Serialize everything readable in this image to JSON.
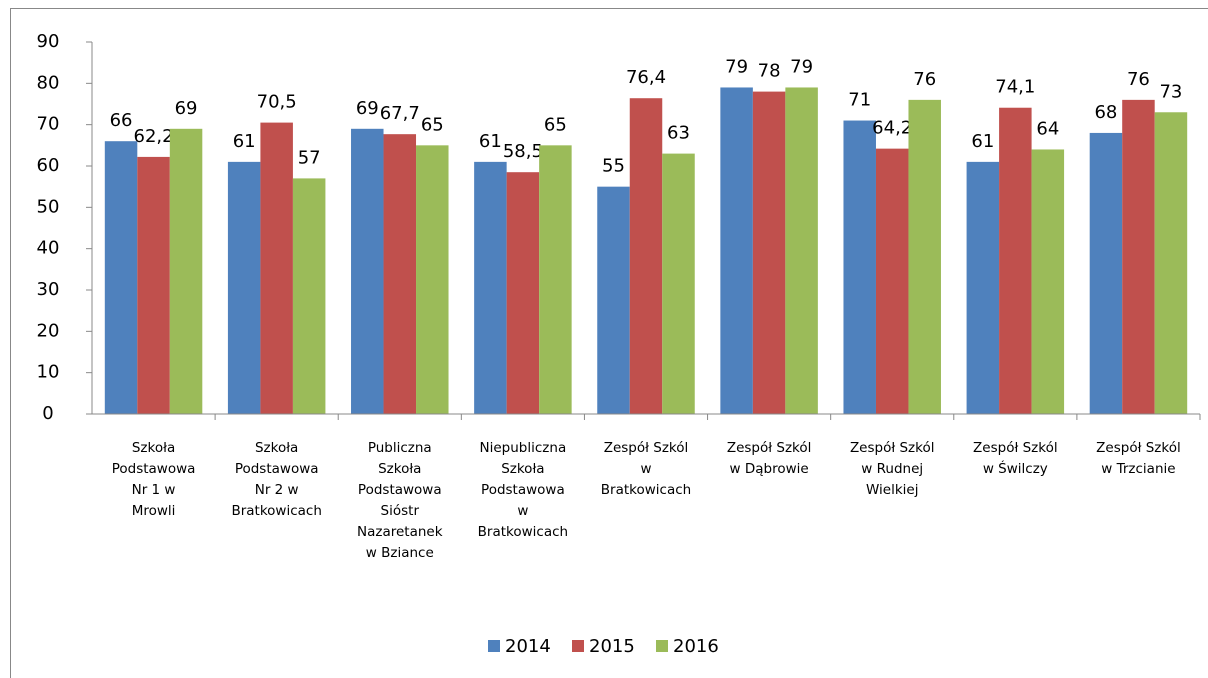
{
  "chart_data": {
    "type": "bar",
    "categories": [
      [
        "Szkoła",
        "Podstawowa",
        "Nr 1 w",
        "Mrowli"
      ],
      [
        "Szkoła",
        "Podstawowa",
        "Nr 2 w",
        "Bratkowicach"
      ],
      [
        "Publiczna",
        "Szkoła",
        "Podstawowa",
        "Sióstr",
        "Nazaretanek",
        "w Bziance"
      ],
      [
        "Niepubliczna",
        "Szkoła",
        "Podstawowa",
        "w",
        "Bratkowicach"
      ],
      [
        "Zespół Szkól",
        "w",
        "Bratkowicach"
      ],
      [
        "Zespół Szkól",
        "w Dąbrowie"
      ],
      [
        "Zespół Szkól",
        "w Rudnej",
        "Wielkiej"
      ],
      [
        "Zespół Szkól",
        "w Świlczy"
      ],
      [
        "Zespół Szkól",
        "w Trzcianie"
      ]
    ],
    "series": [
      {
        "name": "2014",
        "color": "#4f81bd",
        "values": [
          66,
          61,
          69,
          61,
          55,
          79,
          71,
          61,
          68
        ],
        "value_labels": [
          "66",
          "61",
          "69",
          "61",
          "55",
          "79",
          "71",
          "61",
          "68"
        ]
      },
      {
        "name": "2015",
        "color": "#c0504d",
        "values": [
          62.2,
          70.5,
          67.7,
          58.5,
          76.4,
          78,
          64.2,
          74.1,
          76
        ],
        "value_labels": [
          "62,2",
          "70,5",
          "67,7",
          "58,5",
          "76,4",
          "78",
          "64,2",
          "74,1",
          "76"
        ]
      },
      {
        "name": "2016",
        "color": "#9bbb59",
        "values": [
          69,
          57,
          65,
          65,
          63,
          79,
          76,
          64,
          73
        ],
        "value_labels": [
          "69",
          "57",
          "65",
          "65",
          "63",
          "79",
          "76",
          "64",
          "73"
        ]
      }
    ],
    "ylim": [
      0,
      90
    ],
    "yticks": [
      0,
      10,
      20,
      30,
      40,
      50,
      60,
      70,
      80,
      90
    ],
    "legend": "bottom"
  }
}
